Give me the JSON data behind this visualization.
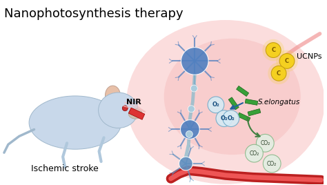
{
  "title": "Nanophotosynthesis therapy",
  "label_ischemic": "Ischemic stroke",
  "label_NIR": "NIR",
  "label_UCNPs": "UCNPs",
  "label_S_elongatus": "S.elongatus",
  "label_O2": "O₂",
  "label_CO2": "CO₂",
  "bg_color": "#ffffff",
  "title_fontsize": 13,
  "label_fontsize": 9,
  "small_fontsize": 7
}
